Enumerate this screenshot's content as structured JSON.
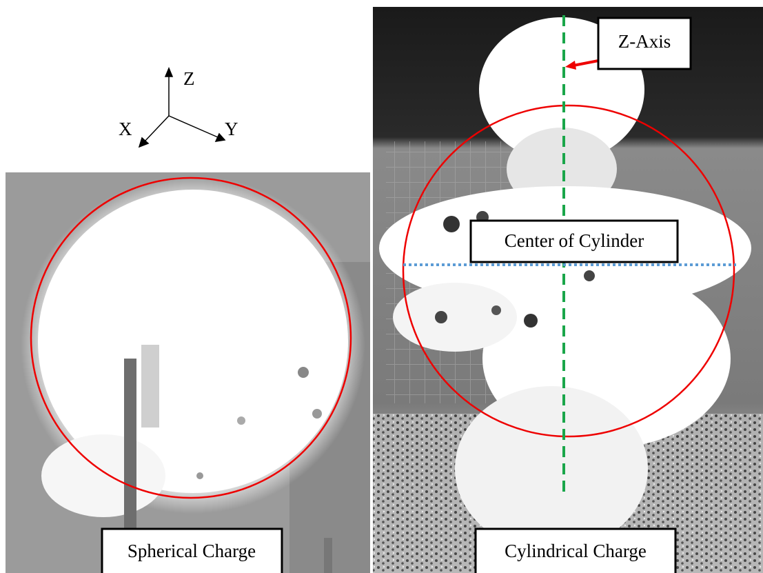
{
  "axes": {
    "z": "Z",
    "x": "X",
    "y": "Y"
  },
  "panels": [
    {
      "label": "Spherical Charge"
    },
    {
      "label": "Cylindrical Charge",
      "annotations": [
        "Z-Axis",
        "Center of Cylinder"
      ]
    }
  ]
}
